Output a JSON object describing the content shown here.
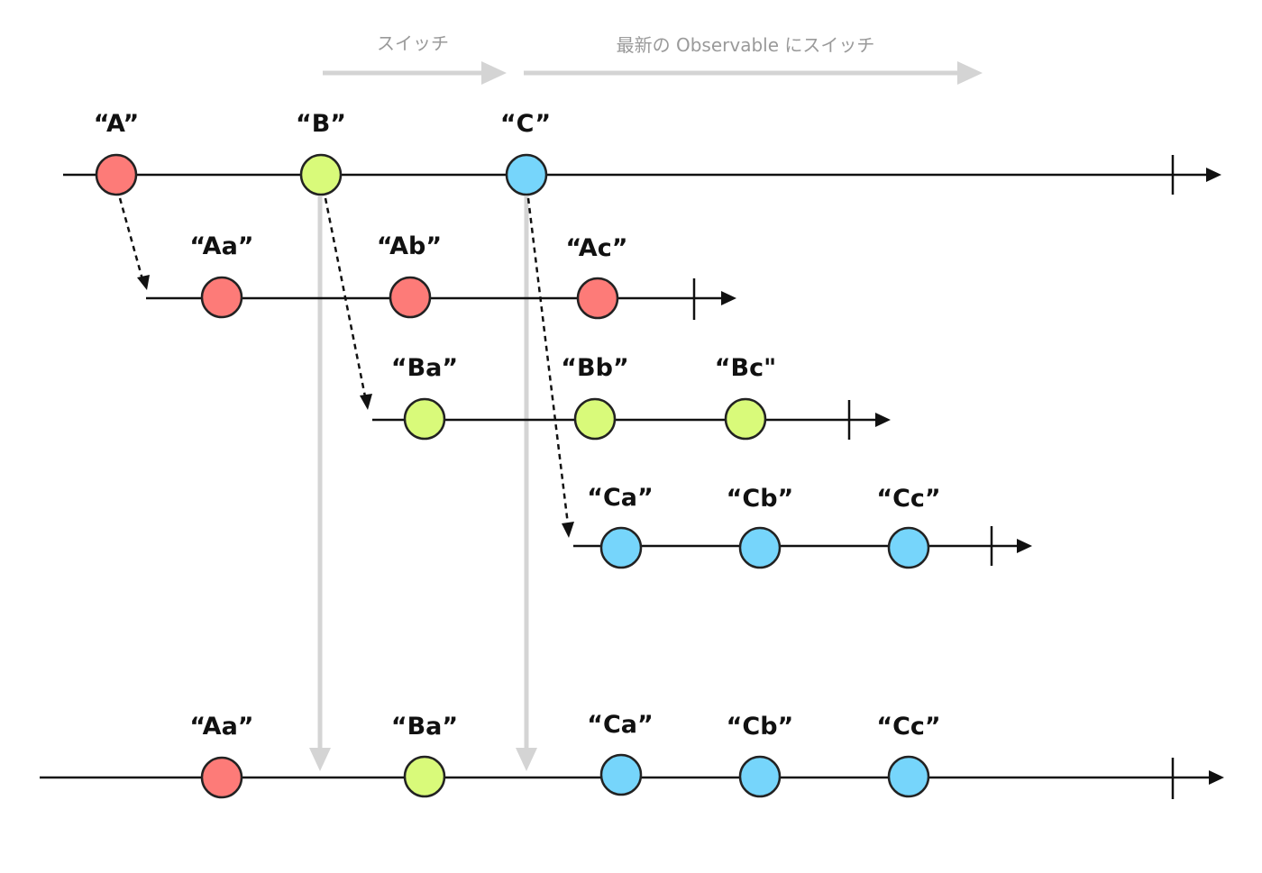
{
  "colors": {
    "A": "#fd7b78",
    "B": "#d9fa7a",
    "C": "#76d5fb",
    "line": "#111111",
    "switch_arrow": "#d4d4d4",
    "header_text": "#9a9a9a"
  },
  "headers": {
    "switch_label": "スイッチ",
    "latest_switch_label": "最新の Observable にスイッチ"
  },
  "source": {
    "items": [
      {
        "label": "“A”",
        "color": "A"
      },
      {
        "label": "“B”",
        "color": "B"
      },
      {
        "label": "“C”",
        "color": "C"
      }
    ]
  },
  "inner_a": {
    "items": [
      {
        "label": "“Aa”",
        "color": "A"
      },
      {
        "label": "“Ab”",
        "color": "A"
      },
      {
        "label": "“Ac”",
        "color": "A"
      }
    ]
  },
  "inner_b": {
    "items": [
      {
        "label": "“Ba”",
        "color": "B"
      },
      {
        "label": "“Bb”",
        "color": "B"
      },
      {
        "label": "“Bc\"",
        "color": "B"
      }
    ]
  },
  "inner_c": {
    "items": [
      {
        "label": "“Ca”",
        "color": "C"
      },
      {
        "label": "“Cb”",
        "color": "C"
      },
      {
        "label": "“Cc”",
        "color": "C"
      }
    ]
  },
  "output": {
    "items": [
      {
        "label": "“Aa”",
        "color": "A"
      },
      {
        "label": "“Ba”",
        "color": "B"
      },
      {
        "label": "“Ca”",
        "color": "C"
      },
      {
        "label": "“Cb”",
        "color": "C"
      },
      {
        "label": "“Cc”",
        "color": "C"
      }
    ]
  }
}
